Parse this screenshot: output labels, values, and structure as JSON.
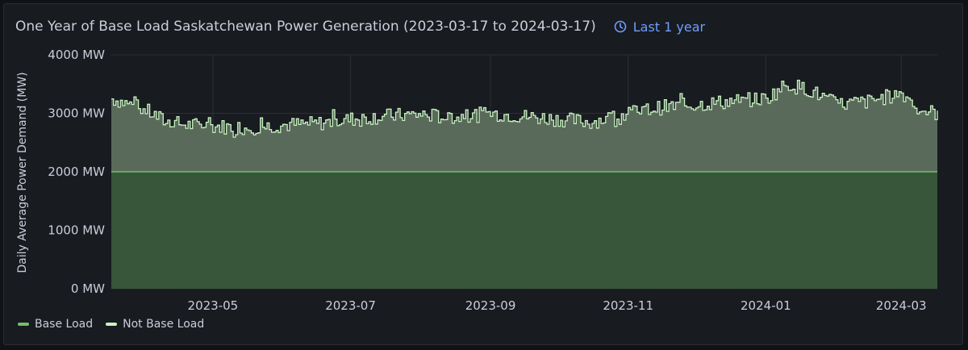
{
  "panel": {
    "title": "One Year of Base Load Saskatchewan Power Generation (2023-03-17 to 2024-03-17)",
    "time_range": "Last 1 year",
    "time_icon": "clock-icon"
  },
  "colors": {
    "background": "#181b1f",
    "base_fill": "#37563a",
    "base_line": "#73bf69",
    "not_base_fill": "#5a6a5a",
    "not_base_line": "#c8f2c2",
    "grid": "#2c3035",
    "tick_text": "#ccccdc"
  },
  "chart_data": {
    "type": "area",
    "title": "One Year of Base Load Saskatchewan Power Generation (2023-03-17 to 2024-03-17)",
    "xlabel": "",
    "ylabel": "Daily Average Power Demand (MW)",
    "x_range": [
      "2023-03-17",
      "2024-03-17"
    ],
    "ylim": [
      0,
      4000
    ],
    "y_ticks": [
      0,
      1000,
      2000,
      3000,
      4000
    ],
    "y_tick_labels": [
      "0 MW",
      "1000 MW",
      "2000 MW",
      "3000 MW",
      "4000 MW"
    ],
    "x_ticks": [
      "2023-05-01",
      "2023-07-01",
      "2023-09-01",
      "2023-11-01",
      "2024-01-01",
      "2024-03-01"
    ],
    "x_tick_labels": [
      "2023-05",
      "2023-07",
      "2023-09",
      "2023-11",
      "2024-01",
      "2024-03"
    ],
    "grid": true,
    "stacked": true,
    "legend_position": "bottom-left",
    "series": [
      {
        "name": "Base Load",
        "constant_value": 2000,
        "color": "#73bf69"
      },
      {
        "name": "Not Base Load",
        "color": "#c8f2c2",
        "description_note": "",
        "monthly_total_values": [
          {
            "date": "2023-03-17",
            "total": 3250
          },
          {
            "date": "2023-03-25",
            "total": 3150
          },
          {
            "date": "2023-04-01",
            "total": 3050
          },
          {
            "date": "2023-04-10",
            "total": 2850
          },
          {
            "date": "2023-04-20",
            "total": 2800
          },
          {
            "date": "2023-05-01",
            "total": 2780
          },
          {
            "date": "2023-05-15",
            "total": 2750
          },
          {
            "date": "2023-06-01",
            "total": 2800
          },
          {
            "date": "2023-06-15",
            "total": 2820
          },
          {
            "date": "2023-07-01",
            "total": 2900
          },
          {
            "date": "2023-07-15",
            "total": 2950
          },
          {
            "date": "2023-08-01",
            "total": 2980
          },
          {
            "date": "2023-08-15",
            "total": 2920
          },
          {
            "date": "2023-09-01",
            "total": 3000
          },
          {
            "date": "2023-09-15",
            "total": 2950
          },
          {
            "date": "2023-10-01",
            "total": 2900
          },
          {
            "date": "2023-10-15",
            "total": 2850
          },
          {
            "date": "2023-11-01",
            "total": 3000
          },
          {
            "date": "2023-11-15",
            "total": 3100
          },
          {
            "date": "2023-12-01",
            "total": 3150
          },
          {
            "date": "2023-12-15",
            "total": 3200
          },
          {
            "date": "2024-01-01",
            "total": 3250
          },
          {
            "date": "2024-01-10",
            "total": 3500
          },
          {
            "date": "2024-01-20",
            "total": 3400
          },
          {
            "date": "2024-02-01",
            "total": 3150
          },
          {
            "date": "2024-02-15",
            "total": 3200
          },
          {
            "date": "2024-03-01",
            "total": 3350
          },
          {
            "date": "2024-03-10",
            "total": 3050
          },
          {
            "date": "2024-03-17",
            "total": 3000
          }
        ]
      }
    ]
  },
  "legend": {
    "items": [
      {
        "label": "Base Load",
        "color": "#73bf69"
      },
      {
        "label": "Not Base Load",
        "color": "#c8f2c2"
      }
    ]
  }
}
